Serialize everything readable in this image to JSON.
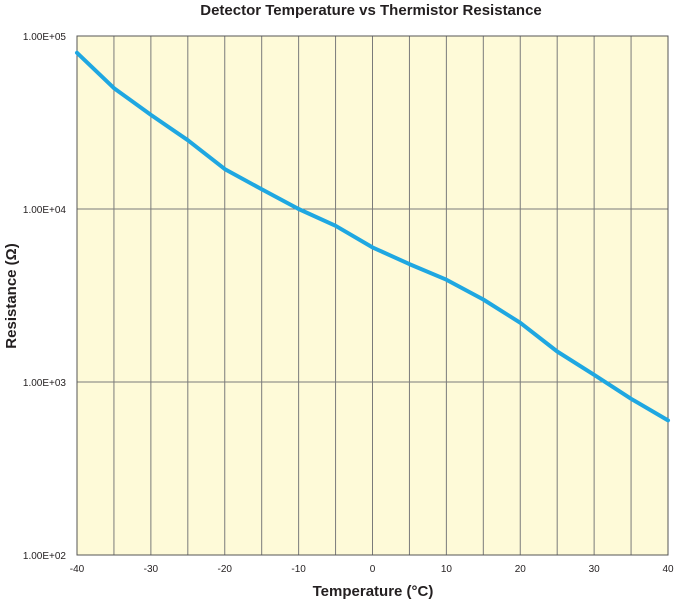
{
  "chart_data": {
    "type": "line",
    "title": "Detector Temperature vs Thermistor Resistance",
    "xlabel": "Temperature (°C)",
    "ylabel": "Resistance (Ω)",
    "xlim": [
      -40,
      40
    ],
    "ylim": [
      100,
      100000
    ],
    "yscale": "log",
    "xticks": [
      -40,
      -30,
      -20,
      -10,
      0,
      10,
      20,
      30,
      40
    ],
    "xtick_labels": [
      "-40",
      "-30",
      "-20",
      "-10",
      "0",
      "10",
      "20",
      "30",
      "40"
    ],
    "yticks": [
      100,
      1000,
      10000,
      100000
    ],
    "ytick_labels": [
      "1.00E+02",
      "1.00E+03",
      "1.00E+04",
      "1.00E+05"
    ],
    "x_minor_step": 5,
    "grid": true,
    "legend": "none",
    "series": [
      {
        "x": [
          -40,
          -35,
          -30,
          -25,
          -20,
          -15,
          -10,
          -5,
          0,
          5,
          10,
          15,
          20,
          25,
          30,
          35,
          40
        ],
        "values": [
          80000,
          50000,
          35000,
          25000,
          17000,
          13000,
          10000,
          8000,
          6000,
          4800,
          3900,
          3000,
          2200,
          1500,
          1100,
          800,
          600
        ]
      }
    ],
    "colors": {
      "plot_background": "#fefad8",
      "grid": "#7a7a7a",
      "line": "#1fa7e1",
      "text": "#231f20"
    }
  }
}
